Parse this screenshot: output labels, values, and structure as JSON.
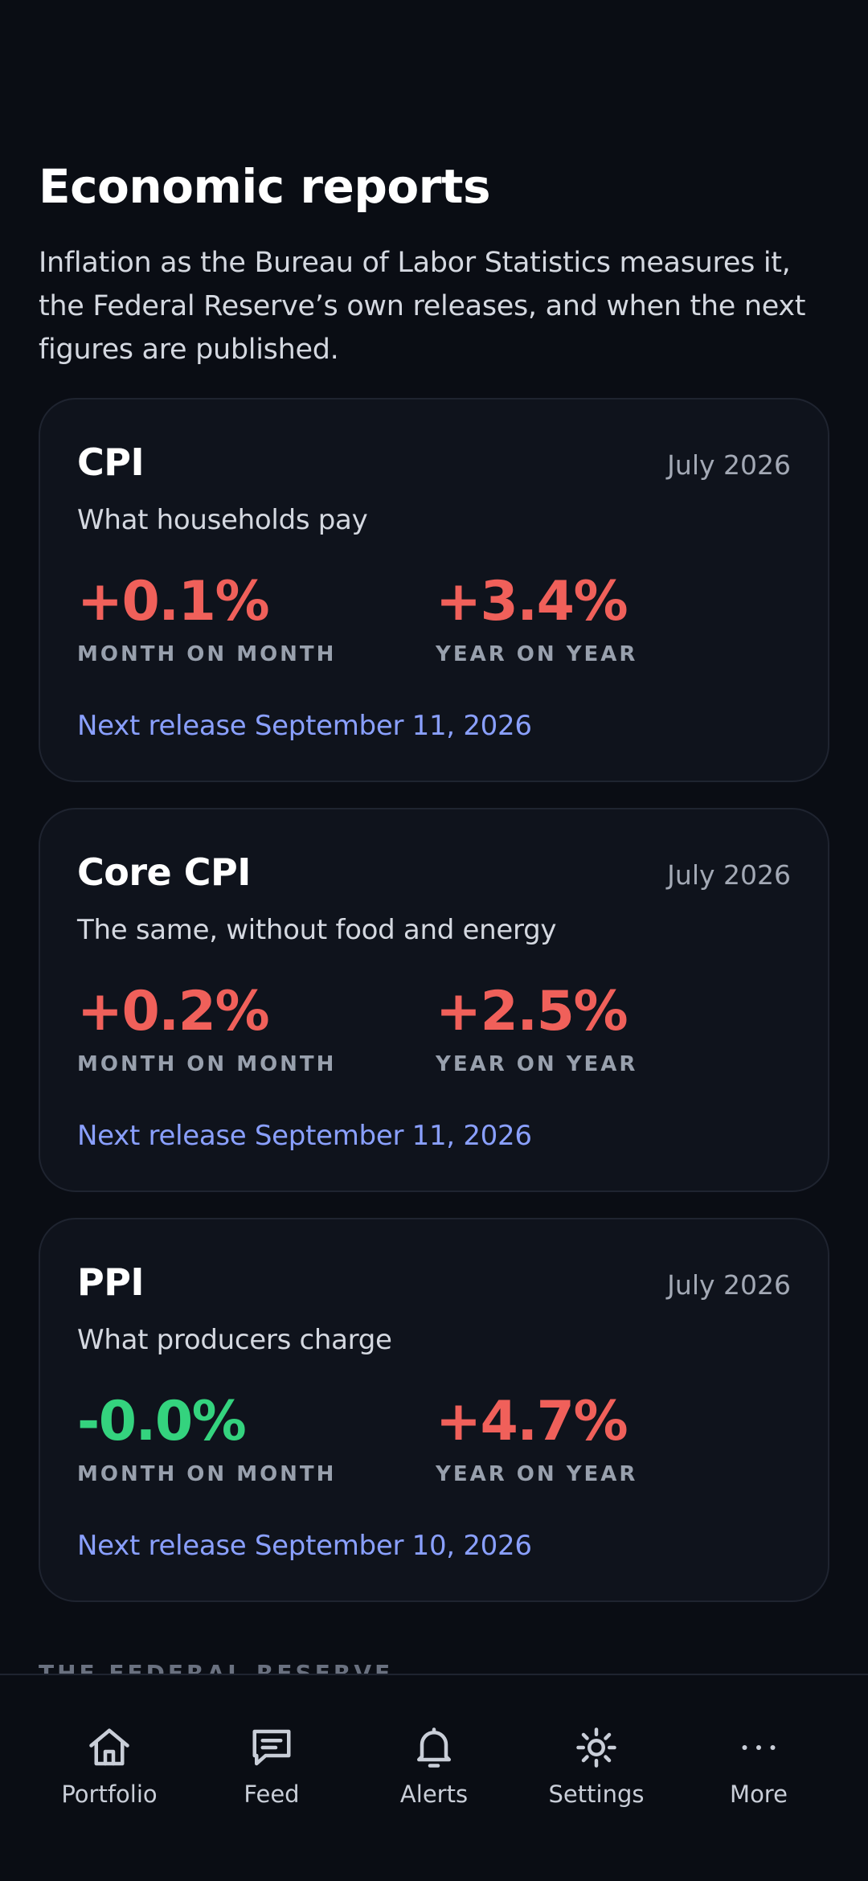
{
  "page": {
    "title": "Economic reports",
    "intro": "Inflation as the Bureau of Labor Statistics measures it, the Federal Reserve’s own releases, and when the next figures are published."
  },
  "colors": {
    "background": "#0a0d14",
    "card": "#0f131c",
    "increase": "#f0605a",
    "decrease": "#34d37e",
    "link": "#8aa0ff"
  },
  "reports": [
    {
      "name": "CPI",
      "period": "July 2026",
      "description": "What households pay",
      "mom_value": "+0.1%",
      "mom_label": "MONTH ON MONTH",
      "yoy_value": "+3.4%",
      "yoy_label": "YEAR ON YEAR",
      "next_release": "Next release September 11, 2026"
    },
    {
      "name": "Core CPI",
      "period": "July 2026",
      "description": "The same, without food and energy",
      "mom_value": "+0.2%",
      "mom_label": "MONTH ON MONTH",
      "yoy_value": "+2.5%",
      "yoy_label": "YEAR ON YEAR",
      "next_release": "Next release September 11, 2026"
    },
    {
      "name": "PPI",
      "period": "July 2026",
      "description": "What producers charge",
      "mom_value": "-0.0%",
      "mom_label": "MONTH ON MONTH",
      "yoy_value": "+4.7%",
      "yoy_label": "YEAR ON YEAR",
      "next_release": "Next release September 10, 2026"
    }
  ],
  "sections": {
    "federal_reserve": "THE FEDERAL RESERVE"
  },
  "tabbar": {
    "items": [
      {
        "label": "Portfolio",
        "icon": "home-icon"
      },
      {
        "label": "Feed",
        "icon": "message-icon"
      },
      {
        "label": "Alerts",
        "icon": "bell-icon"
      },
      {
        "label": "Settings",
        "icon": "gear-icon"
      },
      {
        "label": "More",
        "icon": "more-icon"
      }
    ]
  }
}
